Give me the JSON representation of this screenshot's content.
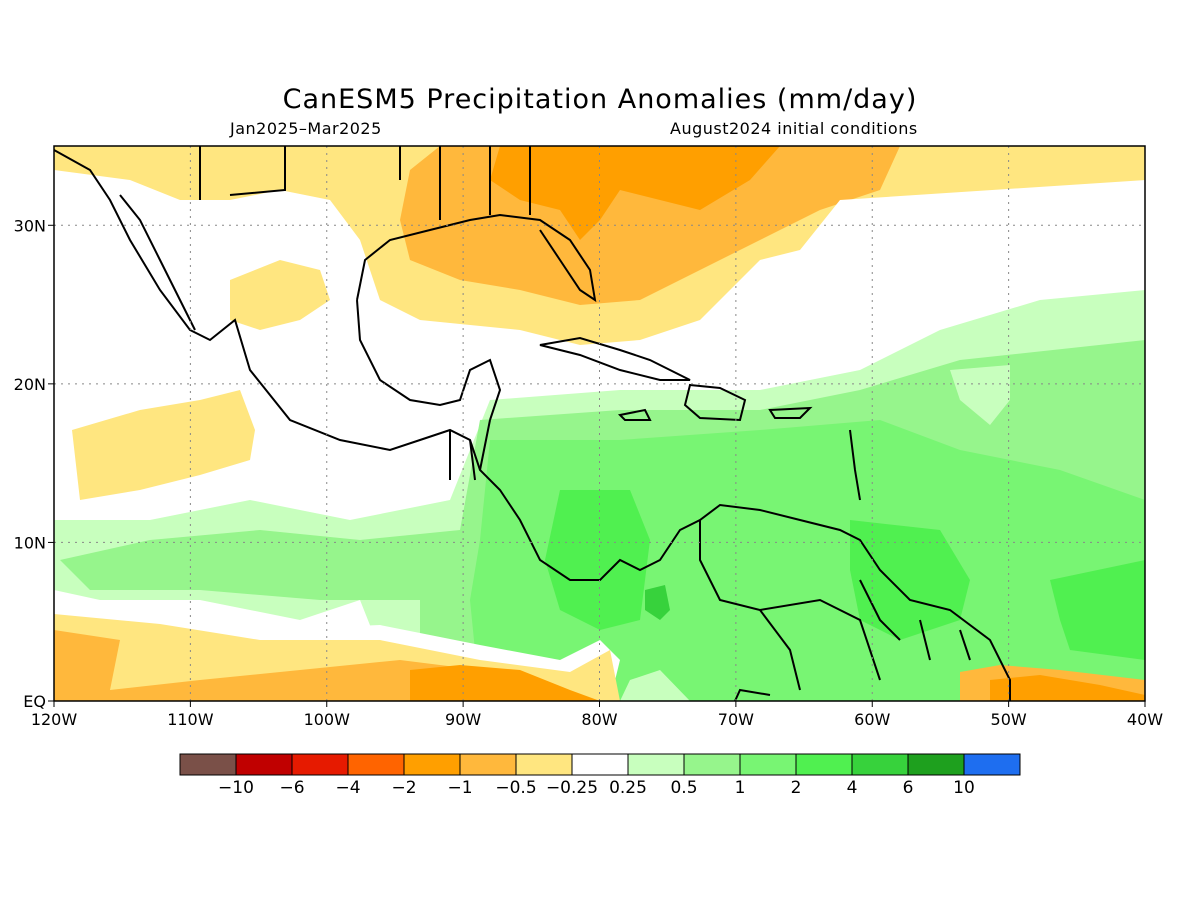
{
  "title": "CanESM5 Precipitation Anomalies (mm/day)",
  "subtitle_left": "Jan2025–Mar2025",
  "subtitle_right": "August2024 initial conditions",
  "axes": {
    "x_ticks": [
      {
        "lon": -120,
        "label": "120W"
      },
      {
        "lon": -110,
        "label": "110W"
      },
      {
        "lon": -100,
        "label": "100W"
      },
      {
        "lon": -90,
        "label": "90W"
      },
      {
        "lon": -80,
        "label": "80W"
      },
      {
        "lon": -70,
        "label": "70W"
      },
      {
        "lon": -60,
        "label": "60W"
      },
      {
        "lon": -50,
        "label": "50W"
      },
      {
        "lon": -40,
        "label": "40W"
      }
    ],
    "y_ticks": [
      {
        "lat": 0,
        "label": "EQ"
      },
      {
        "lat": 10,
        "label": "10N"
      },
      {
        "lat": 20,
        "label": "20N"
      },
      {
        "lat": 30,
        "label": "30N"
      }
    ],
    "lon_range": [
      -120,
      -40
    ],
    "lat_range": [
      0,
      35
    ],
    "grid": true
  },
  "colorbar": {
    "colors": [
      "#7a5048",
      "#c00000",
      "#e61a00",
      "#ff6400",
      "#ff9f00",
      "#ffb83c",
      "#ffe680",
      "#ffffff",
      "#c8ffbe",
      "#96f58c",
      "#78f573",
      "#50f050",
      "#37d23c",
      "#1ea01e",
      "#1e6ef0"
    ],
    "labels": [
      "−10",
      "−6",
      "−4",
      "−2",
      "−1",
      "−0.5",
      "−0.25",
      "0.25",
      "0.5",
      "1",
      "2",
      "4",
      "6",
      "10"
    ]
  },
  "regions": [
    {
      "name": "gulf-dry",
      "level": "-1",
      "color": "#ffb83c"
    },
    {
      "name": "atlantic-dry",
      "level": "-0.5",
      "color": "#ffe680"
    },
    {
      "name": "caribbean-wet",
      "level": "1",
      "color": "#96f58c"
    },
    {
      "name": "south-america-wet",
      "level": "2",
      "color": "#78f573"
    },
    {
      "name": "equatorial-pacific-dry",
      "level": "-1",
      "color": "#ffb83c"
    }
  ]
}
